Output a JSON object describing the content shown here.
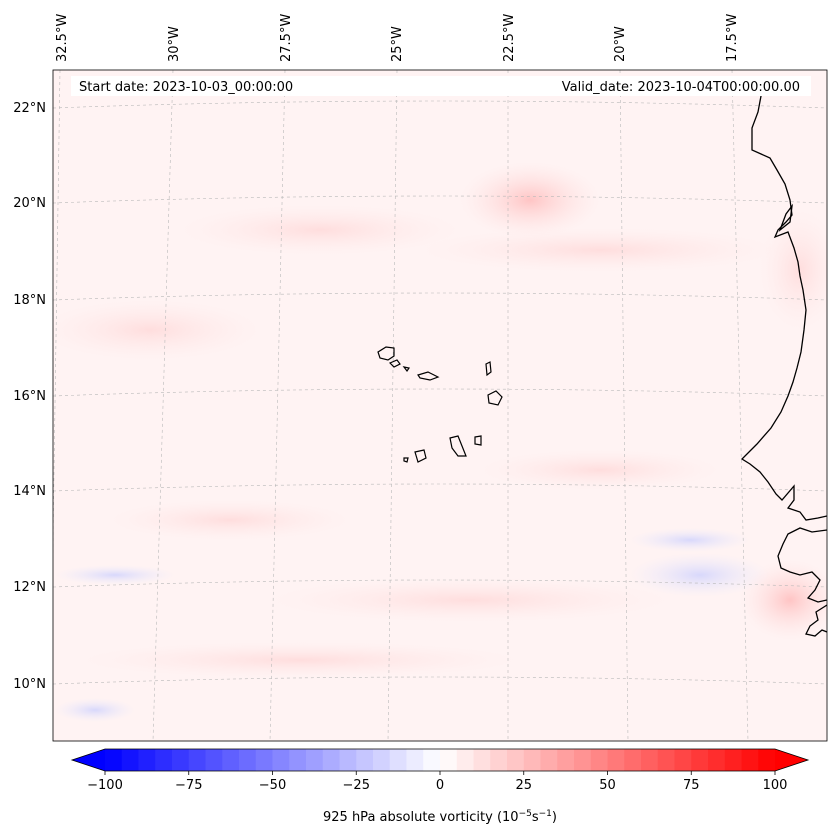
{
  "header": {
    "start_date": "Start date: 2023-10-03_00:00:00",
    "valid_date": "Valid_date: 2023-10-04T00:00:00.00"
  },
  "longitude_labels": [
    "32.5°W",
    "30°W",
    "27.5°W",
    "25°W",
    "22.5°W",
    "20°W",
    "17.5°W"
  ],
  "latitude_labels": [
    "22°N",
    "20°N",
    "18°N",
    "16°N",
    "14°N",
    "12°N",
    "10°N"
  ],
  "colorbar": {
    "min": -100,
    "max": 100,
    "ticks": [
      "−100",
      "−75",
      "−50",
      "−25",
      "0",
      "25",
      "50",
      "75",
      "100"
    ],
    "label_prefix": "925 hPa absolute vorticity (10",
    "label_exp1": "−5",
    "label_mid": "s",
    "label_exp2": "−1",
    "label_suffix": ")",
    "colormap": "bwr",
    "low_color": "#0000ff",
    "mid_color": "#ffffff",
    "high_color": "#ff0000"
  },
  "colors": {
    "background_field": "#fff3f3",
    "coastline": "#000000",
    "gridline": "#b8b8b8"
  }
}
